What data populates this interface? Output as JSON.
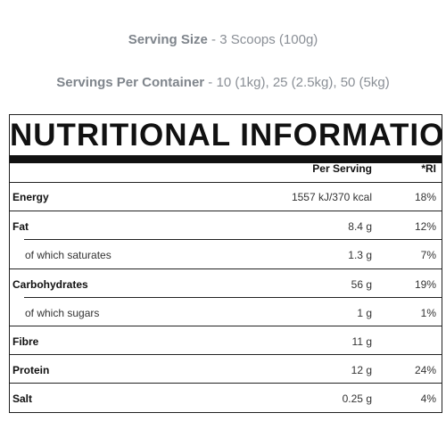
{
  "serving_size": {
    "label": "Serving Size",
    "value": " - 3 Scoops (100g)"
  },
  "servings_per_container": {
    "label": "Servings Per Container",
    "value": " - 10 (1kg), 25 (2.5kg), 50 (5kg)"
  },
  "panel": {
    "title": "NUTRITIONAL INFORMATION",
    "header_per_serving": "Per Serving",
    "header_ri": "*RI",
    "rows": [
      {
        "name": "Energy",
        "per_serving": "1557 kJ/370 kcal",
        "ri": "18%"
      },
      {
        "name": "Fat",
        "per_serving": "8.4 g",
        "ri": "12%"
      },
      {
        "name": "of which saturates",
        "per_serving": "1.3 g",
        "ri": "7%"
      },
      {
        "name": "Carbohydrates",
        "per_serving": "56 g",
        "ri": "19%"
      },
      {
        "name": "of which sugars",
        "per_serving": "1 g",
        "ri": "1%"
      },
      {
        "name": "Fibre",
        "per_serving": "11 g",
        "ri": ""
      },
      {
        "name": "Protein",
        "per_serving": "12 g",
        "ri": "24%"
      },
      {
        "name": "Salt",
        "per_serving": "0.25 g",
        "ri": "4%"
      }
    ]
  }
}
